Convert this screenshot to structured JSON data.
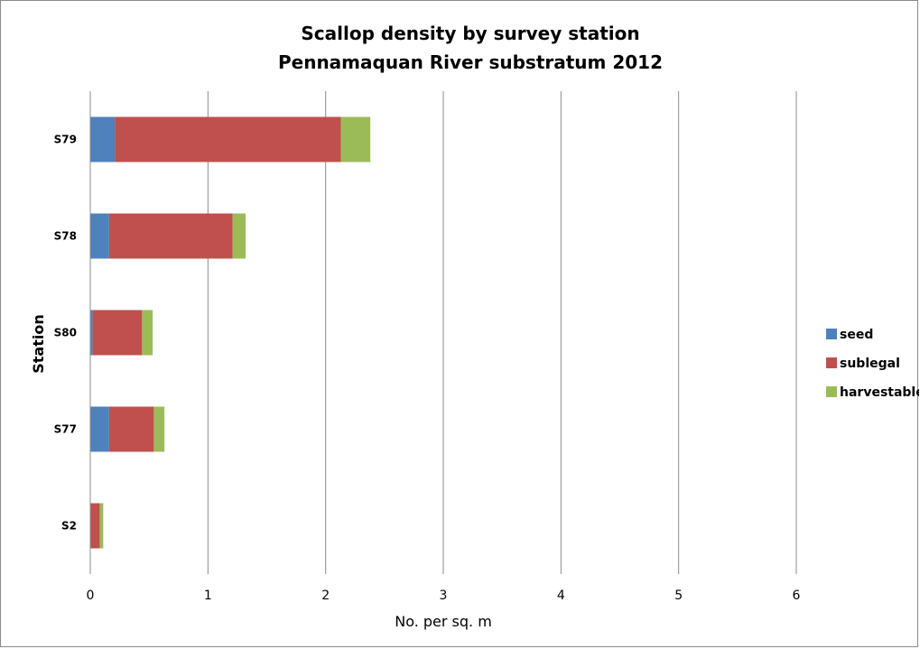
{
  "chart_data": {
    "type": "bar",
    "orientation": "horizontal",
    "stacked": true,
    "title": "Scallop density by survey station",
    "subtitle": "Pennamaquan River substratum 2012",
    "xlabel": "No. per sq. m",
    "ylabel": "Station",
    "xlim": [
      0,
      6
    ],
    "xticks": [
      "0",
      "1",
      "2",
      "3",
      "4",
      "5",
      "6"
    ],
    "grid": "vertical",
    "legend_position": "right",
    "categories": [
      "S79",
      "S78",
      "S80",
      "S77",
      "S2"
    ],
    "series": [
      {
        "name": "seed",
        "color": "#4F81BD",
        "values": [
          0.21,
          0.16,
          0.02,
          0.16,
          0.0
        ]
      },
      {
        "name": "sublegal",
        "color": "#C0504D",
        "values": [
          1.92,
          1.05,
          0.42,
          0.38,
          0.08
        ]
      },
      {
        "name": "harvestable",
        "color": "#9BBB59",
        "values": [
          0.25,
          0.11,
          0.09,
          0.09,
          0.03
        ]
      }
    ]
  }
}
